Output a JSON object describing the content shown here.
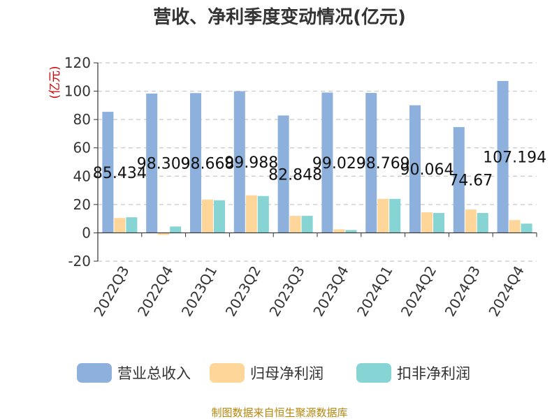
{
  "chart_data": {
    "type": "bar",
    "title": "营收、净利季度变动情况(亿元)",
    "ylabel": "(亿元)",
    "ylim": [
      -20,
      120
    ],
    "yticks": [
      -20,
      0,
      20,
      40,
      60,
      80,
      100,
      120
    ],
    "grid": true,
    "legend_position": "bottom",
    "categories": [
      "2022Q3",
      "2022Q4",
      "2023Q1",
      "2023Q2",
      "2023Q3",
      "2023Q4",
      "2024Q1",
      "2024Q2",
      "2024Q3",
      "2024Q4"
    ],
    "series": [
      {
        "name": "营业总收入",
        "color": "#8eb0dc",
        "values": [
          85.434,
          98.309,
          98.668,
          99.988,
          82.848,
          99.029,
          98.769,
          90.064,
          74.67,
          107.194
        ],
        "labels": [
          "85.434",
          "98.309",
          "98.668",
          "99.988",
          "82.848",
          "99.029",
          "98.769",
          "90.064",
          "74.67",
          "107.194"
        ]
      },
      {
        "name": "归母净利润",
        "color": "#ffd699",
        "values": [
          10.5,
          -1.5,
          23.5,
          26.5,
          12.0,
          2.5,
          24.0,
          14.5,
          16.5,
          9.0
        ]
      },
      {
        "name": "扣非净利润",
        "color": "#86d4d4",
        "values": [
          11.0,
          4.5,
          23.0,
          26.0,
          12.0,
          2.0,
          24.0,
          14.0,
          14.0,
          6.5
        ]
      }
    ],
    "source": "制图数据来自恒生聚源数据库"
  }
}
